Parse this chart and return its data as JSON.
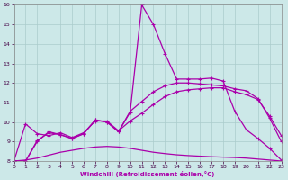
{
  "xlabel": "Windchill (Refroidissement éolien,°C)",
  "background_color": "#cce8e8",
  "grid_color": "#aacccc",
  "line_color": "#aa00aa",
  "xlim": [
    0,
    23
  ],
  "ylim": [
    8,
    16
  ],
  "xticks": [
    0,
    1,
    2,
    3,
    4,
    5,
    6,
    7,
    8,
    9,
    10,
    11,
    12,
    13,
    14,
    15,
    16,
    17,
    18,
    19,
    20,
    21,
    22,
    23
  ],
  "yticks": [
    8,
    9,
    10,
    11,
    12,
    13,
    14,
    15,
    16
  ],
  "line1_x": [
    0,
    1,
    2,
    3,
    4,
    5,
    6,
    7,
    8,
    9,
    10,
    11,
    12,
    13,
    14,
    15,
    16,
    17,
    18,
    19,
    20,
    21,
    22,
    23
  ],
  "line1_y": [
    8.0,
    8.05,
    8.15,
    8.3,
    8.45,
    8.55,
    8.65,
    8.72,
    8.75,
    8.72,
    8.65,
    8.55,
    8.45,
    8.38,
    8.32,
    8.28,
    8.25,
    8.22,
    8.2,
    8.18,
    8.15,
    8.1,
    8.05,
    8.0
  ],
  "line2_x": [
    0,
    1,
    2,
    3,
    4,
    5,
    6,
    7,
    8,
    9,
    10,
    11,
    12,
    13,
    14,
    15,
    16,
    17,
    18,
    19,
    20,
    21,
    22,
    23
  ],
  "line2_y": [
    8.0,
    9.9,
    9.4,
    9.3,
    9.45,
    9.2,
    9.45,
    10.05,
    10.05,
    9.55,
    10.05,
    10.45,
    10.9,
    11.3,
    11.55,
    11.65,
    11.7,
    11.75,
    11.75,
    11.55,
    11.4,
    11.15,
    10.3,
    9.3
  ],
  "line3_x": [
    0,
    1,
    2,
    3,
    4,
    5,
    6,
    7,
    8,
    9,
    10,
    11,
    12,
    13,
    14,
    15,
    16,
    17,
    18,
    19,
    20,
    21,
    22,
    23
  ],
  "line3_y": [
    8.0,
    8.0,
    9.0,
    9.5,
    9.35,
    9.15,
    9.4,
    10.1,
    10.0,
    9.5,
    10.5,
    16.0,
    15.0,
    13.5,
    12.2,
    12.2,
    12.2,
    12.25,
    12.1,
    10.55,
    9.6,
    9.15,
    8.65,
    8.05
  ],
  "line4_x": [
    0,
    1,
    2,
    3,
    4,
    5,
    6,
    7,
    8,
    9,
    10,
    11,
    12,
    13,
    14,
    15,
    16,
    17,
    18,
    19,
    20,
    21,
    22,
    23
  ],
  "line4_y": [
    8.0,
    8.0,
    9.05,
    9.45,
    9.35,
    9.15,
    9.4,
    10.1,
    10.0,
    9.5,
    10.55,
    11.05,
    11.55,
    11.85,
    12.0,
    12.0,
    11.95,
    11.9,
    11.85,
    11.7,
    11.6,
    11.2,
    10.2,
    9.0
  ]
}
